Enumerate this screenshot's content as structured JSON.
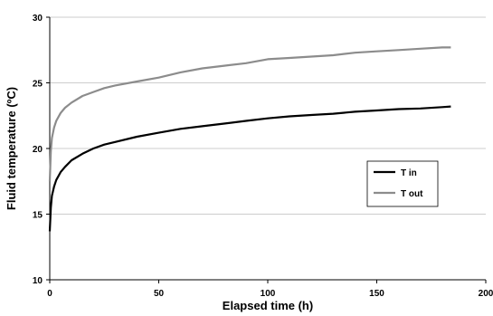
{
  "chart_data": {
    "type": "line",
    "xlabel": "Elapsed time (h)",
    "ylabel": "Fluid temperature (ºC)",
    "xlim": [
      0,
      200
    ],
    "ylim": [
      10,
      30
    ],
    "x_ticks": [
      "0",
      "50",
      "100",
      "150",
      "200"
    ],
    "y_ticks": [
      "10",
      "15",
      "20",
      "25",
      "30"
    ],
    "grid": "horizontal",
    "legend_position": "right",
    "series": [
      {
        "name": "T in",
        "color": "#000000",
        "x": [
          0,
          0.5,
          1,
          2,
          3,
          5,
          7,
          10,
          15,
          20,
          25,
          30,
          40,
          50,
          60,
          70,
          80,
          90,
          100,
          110,
          120,
          130,
          140,
          150,
          160,
          170,
          180,
          184
        ],
        "y": [
          13.7,
          15.5,
          16.4,
          17.1,
          17.6,
          18.2,
          18.6,
          19.1,
          19.6,
          20.0,
          20.3,
          20.5,
          20.9,
          21.2,
          21.5,
          21.7,
          21.9,
          22.1,
          22.3,
          22.45,
          22.55,
          22.65,
          22.8,
          22.9,
          23.0,
          23.05,
          23.15,
          23.2
        ]
      },
      {
        "name": "T out",
        "color": "#8c8c8c",
        "x": [
          0,
          0.5,
          1,
          2,
          3,
          5,
          7,
          10,
          15,
          20,
          25,
          30,
          40,
          50,
          60,
          70,
          80,
          90,
          100,
          110,
          120,
          130,
          140,
          150,
          160,
          170,
          180,
          184
        ],
        "y": [
          17.5,
          19.8,
          20.8,
          21.6,
          22.1,
          22.7,
          23.1,
          23.5,
          24.0,
          24.3,
          24.6,
          24.8,
          25.1,
          25.4,
          25.8,
          26.1,
          26.3,
          26.5,
          26.8,
          26.9,
          27.0,
          27.1,
          27.3,
          27.4,
          27.5,
          27.6,
          27.7,
          27.7
        ]
      }
    ]
  }
}
